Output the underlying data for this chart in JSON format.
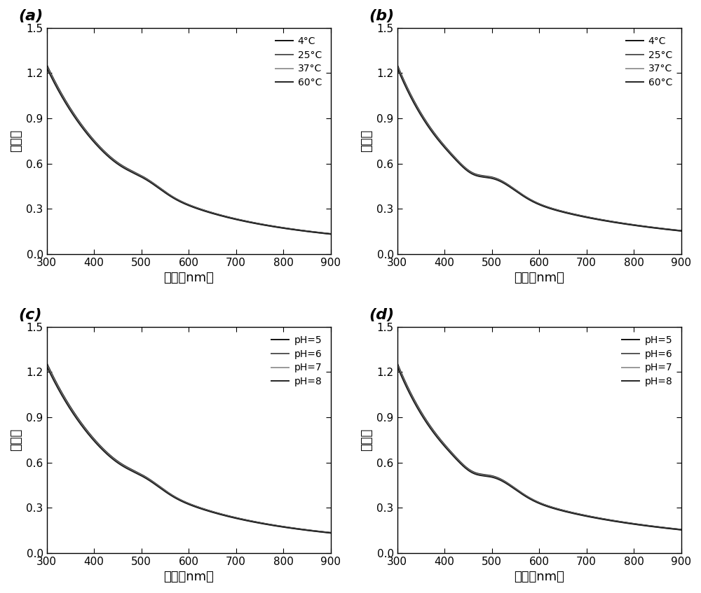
{
  "x_min": 300,
  "x_max": 900,
  "y_min": 0.0,
  "y_max": 1.5,
  "x_ticks": [
    300,
    400,
    500,
    600,
    700,
    800,
    900
  ],
  "y_ticks": [
    0.0,
    0.3,
    0.6,
    0.9,
    1.2,
    1.5
  ],
  "xlabel": "波长（nm）",
  "ylabel": "吸收値",
  "panel_labels": [
    "(a)",
    "(b)",
    "(c)",
    "(d)"
  ],
  "temp_labels": [
    "4°C",
    "25°C",
    "37°C",
    "60°C"
  ],
  "ph_labels": [
    "pH=5",
    "pH=6",
    "pH=7",
    "pH=8"
  ],
  "line_colors_dark": [
    "#0d0d0d",
    "#3d3d3d",
    "#808080",
    "#202020"
  ],
  "bg_color": "#ffffff",
  "line_width": 1.4,
  "legend_fontsize": 10,
  "label_fontsize": 13,
  "tick_fontsize": 11,
  "panel_fontsize": 16
}
